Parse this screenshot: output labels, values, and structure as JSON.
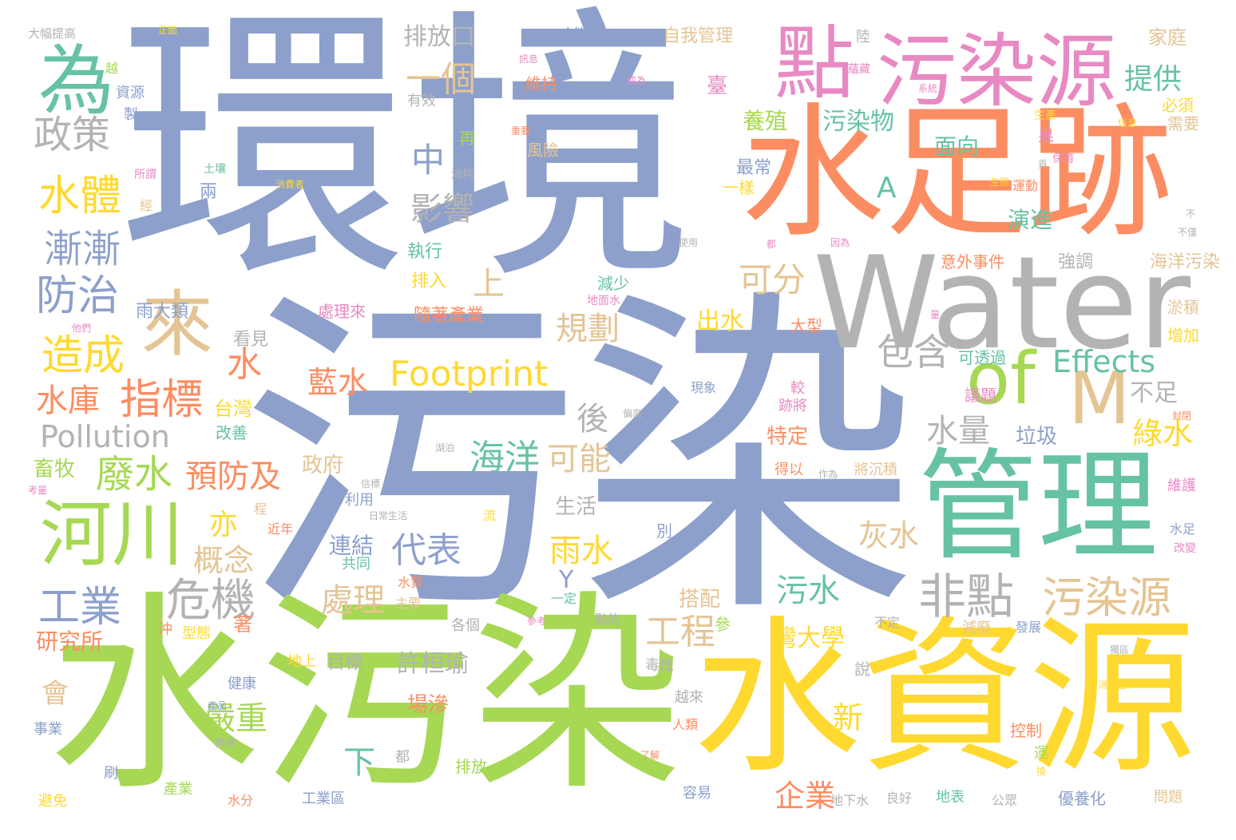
{
  "palette": {
    "blue": "#8da0cb",
    "orange": "#fc8d62",
    "green": "#66c2a5",
    "lime": "#a6d854",
    "yellow": "#ffd92f",
    "tan": "#e5c494",
    "pink": "#e78ac3",
    "gray": "#b3b3b3"
  },
  "words": [
    {
      "id": "huanjing",
      "text": "環境",
      "color": "blue"
    },
    {
      "id": "wuran",
      "text": "污染",
      "color": "blue"
    },
    {
      "id": "shuiwuran",
      "text": "水污染",
      "color": "lime"
    },
    {
      "id": "shuiziyuan",
      "text": "水資源",
      "color": "yellow"
    },
    {
      "id": "shuizuji",
      "text": "水足跡",
      "color": "orange"
    },
    {
      "id": "water",
      "text": "Water",
      "color": "gray"
    },
    {
      "id": "guanli",
      "text": "管理",
      "color": "green"
    },
    {
      "id": "dian",
      "text": "點",
      "color": "pink"
    },
    {
      "id": "wuranyuan-top",
      "text": "污染源",
      "color": "pink"
    },
    {
      "id": "wei",
      "text": "為",
      "color": "green"
    },
    {
      "id": "lai",
      "text": "來",
      "color": "tan"
    },
    {
      "id": "of",
      "text": "of",
      "color": "lime"
    },
    {
      "id": "m",
      "text": "M",
      "color": "tan"
    },
    {
      "id": "hechuan",
      "text": "河川",
      "color": "lime"
    },
    {
      "id": "feidian",
      "text": "非點",
      "color": "gray"
    },
    {
      "id": "wuranyuan-b",
      "text": "污染源",
      "color": "tan"
    },
    {
      "id": "footprint",
      "text": "Footprint",
      "color": "yellow"
    },
    {
      "id": "pollution",
      "text": "Pollution",
      "color": "gray"
    },
    {
      "id": "effects",
      "text": "Effects",
      "color": "green"
    },
    {
      "id": "zhengce",
      "text": "政策",
      "color": "gray"
    },
    {
      "id": "shuiti",
      "text": "水體",
      "color": "yellow"
    },
    {
      "id": "jianjian",
      "text": "漸漸",
      "color": "blue"
    },
    {
      "id": "fangzhi",
      "text": "防治",
      "color": "blue"
    },
    {
      "id": "zaocheng",
      "text": "造成",
      "color": "yellow"
    },
    {
      "id": "zhibiao",
      "text": "指標",
      "color": "orange"
    },
    {
      "id": "shuiku",
      "text": "水庫",
      "color": "orange"
    },
    {
      "id": "feishui",
      "text": "廢水",
      "color": "lime"
    },
    {
      "id": "yufangji",
      "text": "預防及",
      "color": "orange"
    },
    {
      "id": "gongye",
      "text": "工業",
      "color": "blue"
    },
    {
      "id": "weiji",
      "text": "危機",
      "color": "gray"
    },
    {
      "id": "gainian",
      "text": "概念",
      "color": "tan"
    },
    {
      "id": "daibiao",
      "text": "代表",
      "color": "blue"
    },
    {
      "id": "yige",
      "text": "一個",
      "color": "tan"
    },
    {
      "id": "zhong",
      "text": "中",
      "color": "blue"
    },
    {
      "id": "yingxiang",
      "text": "影響",
      "color": "gray"
    },
    {
      "id": "shang",
      "text": "上",
      "color": "tan"
    },
    {
      "id": "guihua",
      "text": "規劃",
      "color": "tan"
    },
    {
      "id": "shui",
      "text": "水",
      "color": "orange"
    },
    {
      "id": "lanshui",
      "text": "藍水",
      "color": "orange"
    },
    {
      "id": "hou",
      "text": "後",
      "color": "gray"
    },
    {
      "id": "haiyang",
      "text": "海洋",
      "color": "green"
    },
    {
      "id": "keneng",
      "text": "可能",
      "color": "tan"
    },
    {
      "id": "baohan",
      "text": "包含",
      "color": "gray"
    },
    {
      "id": "shuiliang",
      "text": "水量",
      "color": "gray"
    },
    {
      "id": "bubu",
      "text": "不足",
      "color": "gray"
    },
    {
      "id": "lvshui",
      "text": "綠水",
      "color": "yellow"
    },
    {
      "id": "kefen",
      "text": "可分",
      "color": "tan"
    },
    {
      "id": "paifangkou",
      "text": "排放口",
      "color": "gray"
    },
    {
      "id": "tigong",
      "text": "提供",
      "color": "green"
    },
    {
      "id": "wuranwu",
      "text": "污染物",
      "color": "green"
    },
    {
      "id": "mianxiang",
      "text": "面向",
      "color": "green"
    },
    {
      "id": "yangzhi",
      "text": "養殖",
      "color": "lime"
    },
    {
      "id": "a",
      "text": "A",
      "color": "green"
    },
    {
      "id": "yanjin",
      "text": "演進",
      "color": "green"
    },
    {
      "id": "chushui",
      "text": "出水",
      "color": "yellow"
    },
    {
      "id": "yushui",
      "text": "雨水",
      "color": "yellow"
    },
    {
      "id": "huishui",
      "text": "灰水",
      "color": "tan"
    },
    {
      "id": "y",
      "text": "Y",
      "color": "blue"
    },
    {
      "id": "chuli",
      "text": "處理",
      "color": "tan"
    },
    {
      "id": "wushui",
      "text": "污水",
      "color": "green"
    },
    {
      "id": "gongcheng",
      "text": "工程",
      "color": "tan"
    },
    {
      "id": "yanzhong",
      "text": "嚴重",
      "color": "lime"
    },
    {
      "id": "xia",
      "text": "下",
      "color": "green"
    },
    {
      "id": "xuhuanyu",
      "text": "許桓瑜",
      "color": "gray"
    },
    {
      "id": "qiye",
      "text": "企業",
      "color": "orange"
    },
    {
      "id": "xin",
      "text": "新",
      "color": "yellow"
    },
    {
      "id": "wandaxue",
      "text": "灣大學",
      "color": "yellow"
    },
    {
      "id": "taiwan",
      "text": "台灣",
      "color": "yellow"
    },
    {
      "id": "yi",
      "text": "亦",
      "color": "yellow"
    },
    {
      "id": "yanjiusuo",
      "text": "研究所",
      "color": "orange"
    },
    {
      "id": "hui",
      "text": "會",
      "color": "tan"
    },
    {
      "id": "xumu",
      "text": "畜牧",
      "color": "lime"
    },
    {
      "id": "zhengfu",
      "text": "政府",
      "color": "tan"
    },
    {
      "id": "shenghuo",
      "text": "生活",
      "color": "gray"
    },
    {
      "id": "lianjie",
      "text": "連結",
      "color": "blue"
    },
    {
      "id": "dapei",
      "text": "搭配",
      "color": "tan"
    },
    {
      "id": "tedding",
      "text": "特定",
      "color": "orange"
    },
    {
      "id": "laji",
      "text": "垃圾",
      "color": "blue"
    },
    {
      "id": "chaqiao",
      "text": "場滲",
      "color": "orange"
    },
    {
      "id": "muBiao",
      "text": "目標",
      "color": "gray"
    },
    {
      "id": "changlai",
      "text": "雨大類",
      "color": "blue"
    },
    {
      "id": "zhixing",
      "text": "執行",
      "color": "green"
    },
    {
      "id": "paiRu",
      "text": "排入",
      "color": "yellow"
    },
    {
      "id": "chanye",
      "text": "隨著產業",
      "color": "orange"
    },
    {
      "id": "chulilai",
      "text": "處理來",
      "color": "pink"
    },
    {
      "id": "kanjian",
      "text": "看見",
      "color": "gray"
    },
    {
      "id": "qiangdiao",
      "text": "強調",
      "color": "gray"
    },
    {
      "id": "haiyangwr",
      "text": "海洋污染",
      "color": "tan"
    },
    {
      "id": "yuji",
      "text": "淤積",
      "color": "tan"
    },
    {
      "id": "zengjia",
      "text": "增加",
      "color": "yellow"
    },
    {
      "id": "yiwai",
      "text": "意外事件",
      "color": "orange"
    },
    {
      "id": "dashuiti",
      "text": "大型",
      "color": "orange"
    },
    {
      "id": "jianshao",
      "text": "減少",
      "color": "green"
    },
    {
      "id": "kezhou",
      "text": "可透過",
      "color": "green"
    },
    {
      "id": "yiti",
      "text": "議題",
      "color": "pink"
    },
    {
      "id": "ziwo",
      "text": "自我管理",
      "color": "tan"
    },
    {
      "id": "jiating",
      "text": "家庭",
      "color": "tan"
    },
    {
      "id": "weichi",
      "text": "維持",
      "color": "orange"
    },
    {
      "id": "tai",
      "text": "臺",
      "color": "pink"
    },
    {
      "id": "youxiao",
      "text": "有效",
      "color": "gray"
    },
    {
      "id": "bixu",
      "text": "必須",
      "color": "yellow"
    },
    {
      "id": "xuyao",
      "text": "需要",
      "color": "tan"
    },
    {
      "id": "guo",
      "text": "果",
      "color": "pink"
    },
    {
      "id": "fengxian",
      "text": "風險",
      "color": "tan"
    },
    {
      "id": "zai",
      "text": "再",
      "color": "lime"
    },
    {
      "id": "zuichang",
      "text": "最常",
      "color": "blue"
    },
    {
      "id": "yiyang",
      "text": "一樣",
      "color": "yellow"
    },
    {
      "id": "liang",
      "text": "兩",
      "color": "blue"
    },
    {
      "id": "turang",
      "text": "土壤",
      "color": "green"
    },
    {
      "id": "xiaohaozhe",
      "text": "消費者",
      "color": "yellow"
    },
    {
      "id": "sheyin",
      "text": "排放",
      "color": "lime"
    },
    {
      "id": "dadafu",
      "text": "大幅提高",
      "color": "gray"
    },
    {
      "id": "yue",
      "text": "越",
      "color": "lime"
    },
    {
      "id": "caineng",
      "text": "才能",
      "color": "blue"
    },
    {
      "id": "lu",
      "text": "陸",
      "color": "gray"
    },
    {
      "id": "ziyuan",
      "text": "資源",
      "color": "blue"
    },
    {
      "id": "zhi",
      "text": "製",
      "color": "blue"
    },
    {
      "id": "gaishan",
      "text": "改善",
      "color": "green"
    },
    {
      "id": "bie",
      "text": "別",
      "color": "blue"
    },
    {
      "id": "gongtong",
      "text": "共同",
      "color": "green"
    },
    {
      "id": "liyong",
      "text": "利用",
      "color": "blue"
    },
    {
      "id": "jinnian",
      "text": "近年",
      "color": "orange"
    },
    {
      "id": "cheng",
      "text": "程",
      "color": "tan"
    },
    {
      "id": "liu",
      "text": "流",
      "color": "yellow"
    },
    {
      "id": "shuizhi",
      "text": "水質",
      "color": "orange"
    },
    {
      "id": "zhuyao",
      "text": "主要",
      "color": "tan"
    },
    {
      "id": "yiding",
      "text": "一定",
      "color": "green"
    },
    {
      "id": "gegee",
      "text": "各個",
      "color": "gray"
    },
    {
      "id": "xingtai",
      "text": "型態",
      "color": "yellow"
    },
    {
      "id": "chong",
      "text": "沖",
      "color": "orange"
    },
    {
      "id": "zhe",
      "text": "著",
      "color": "orange"
    },
    {
      "id": "dishang",
      "text": "地上",
      "color": "yellow"
    },
    {
      "id": "jiankang",
      "text": "健康",
      "color": "blue"
    },
    {
      "id": "shiye",
      "text": "事業",
      "color": "blue"
    },
    {
      "id": "shua",
      "text": "刷",
      "color": "blue"
    },
    {
      "id": "bimian",
      "text": "避免",
      "color": "yellow"
    },
    {
      "id": "shuifen",
      "text": "水分",
      "color": "orange"
    },
    {
      "id": "chanye2",
      "text": "產業",
      "color": "lime"
    },
    {
      "id": "gongyequ",
      "text": "工業區",
      "color": "blue"
    },
    {
      "id": "dou",
      "text": "都",
      "color": "gray"
    },
    {
      "id": "rongyi",
      "text": "容易",
      "color": "blue"
    },
    {
      "id": "dixiashui",
      "text": "地下水",
      "color": "gray"
    },
    {
      "id": "lianghao",
      "text": "良好",
      "color": "gray"
    },
    {
      "id": "dibiao",
      "text": "地表",
      "color": "green"
    },
    {
      "id": "gongzhong",
      "text": "公眾",
      "color": "gray"
    },
    {
      "id": "youhua",
      "text": "優養化",
      "color": "blue"
    },
    {
      "id": "wenti",
      "text": "問題",
      "color": "tan"
    },
    {
      "id": "fazhan",
      "text": "發展",
      "color": "blue"
    },
    {
      "id": "jianfei",
      "text": "減廢",
      "color": "tan"
    },
    {
      "id": "buding",
      "text": "不定",
      "color": "gray"
    },
    {
      "id": "duxing",
      "text": "毒性",
      "color": "gray"
    },
    {
      "id": "yuelaiyue",
      "text": "越來",
      "color": "gray"
    },
    {
      "id": "renlei",
      "text": "人類",
      "color": "orange"
    },
    {
      "id": "kongzhi",
      "text": "控制",
      "color": "orange"
    },
    {
      "id": "yun",
      "text": "運",
      "color": "lime"
    },
    {
      "id": "shuo",
      "text": "說",
      "color": "gray"
    },
    {
      "id": "can",
      "text": "參",
      "color": "lime"
    },
    {
      "id": "dian2",
      "text": "點的",
      "color": "gray"
    },
    {
      "id": "xianxiang",
      "text": "現象",
      "color": "blue"
    },
    {
      "id": "jiao",
      "text": "較",
      "color": "pink"
    },
    {
      "id": "jijiang",
      "text": "跡將",
      "color": "pink"
    },
    {
      "id": "deyi",
      "text": "得以",
      "color": "orange"
    },
    {
      "id": "jiangchen",
      "text": "將沉積",
      "color": "tan"
    },
    {
      "id": "weihu",
      "text": "維護",
      "color": "pink"
    },
    {
      "id": "shuizu",
      "text": "水足",
      "color": "blue"
    },
    {
      "id": "gaibian",
      "text": "改變",
      "color": "pink"
    },
    {
      "id": "weishengwu",
      "text": "生態",
      "color": "yellow"
    },
    {
      "id": "yundong",
      "text": "運動",
      "color": "orange"
    },
    {
      "id": "dimianshui",
      "text": "地面水",
      "color": "pink"
    },
    {
      "id": "chengwei",
      "text": "成為",
      "color": "pink"
    },
    {
      "id": "xiaohaoshe",
      "text": "消耗",
      "color": "gray"
    },
    {
      "id": "suowei",
      "text": "所謂",
      "color": "pink"
    },
    {
      "id": "jing",
      "text": "經",
      "color": "tan"
    },
    {
      "id": "baoyu",
      "text": "保育",
      "color": "pink"
    },
    {
      "id": "shiyong",
      "text": "使用",
      "color": "gray"
    },
    {
      "id": "yinwei",
      "text": "因為",
      "color": "pink"
    },
    {
      "id": "bujin",
      "text": "不僅",
      "color": "gray"
    },
    {
      "id": "zhengmian",
      "text": "正面",
      "color": "yellow"
    },
    {
      "id": "chengshi",
      "text": "重要",
      "color": "orange"
    },
    {
      "id": "xunxi",
      "text": "訊息",
      "color": "pink"
    },
    {
      "id": "yunhan",
      "text": "蘊藏",
      "color": "pink"
    },
    {
      "id": "xitong",
      "text": "系統",
      "color": "pink"
    },
    {
      "id": "shengchan",
      "text": "生產",
      "color": "yellow"
    },
    {
      "id": "xinxi",
      "text": "信息",
      "color": "yellow"
    },
    {
      "id": "gong",
      "text": "貢",
      "color": "gray"
    },
    {
      "id": "bufa",
      "text": "不",
      "color": "gray"
    },
    {
      "id": "tamen",
      "text": "他們",
      "color": "pink"
    },
    {
      "id": "kaoliang",
      "text": "考量",
      "color": "pink"
    },
    {
      "id": "richang",
      "text": "日常生活",
      "color": "gray"
    },
    {
      "id": "hupo",
      "text": "湖泊",
      "color": "gray"
    },
    {
      "id": "zuowei",
      "text": "作為",
      "color": "gray"
    },
    {
      "id": "liangbiao",
      "text": "量",
      "color": "pink"
    },
    {
      "id": "tingzhi",
      "text": "偏高",
      "color": "gray"
    },
    {
      "id": "xinqiang",
      "text": "信標",
      "color": "gray"
    },
    {
      "id": "duzhuan",
      "text": "獨區",
      "color": "gray"
    },
    {
      "id": "zhaosui",
      "text": "參考",
      "color": "pink"
    },
    {
      "id": "xiaofeiliang",
      "text": "消費量",
      "color": "yellow"
    },
    {
      "id": "huan",
      "text": "換",
      "color": "yellow"
    },
    {
      "id": "biaozhun",
      "text": "標準",
      "color": "gray"
    },
    {
      "id": "liaojie",
      "text": "了解",
      "color": "orange"
    },
    {
      "id": "chanpin",
      "text": "產品",
      "color": "blue"
    },
    {
      "id": "fengling",
      "text": "封閉",
      "color": "orange"
    },
    {
      "id": "dou2",
      "text": "都",
      "color": "pink"
    }
  ]
}
